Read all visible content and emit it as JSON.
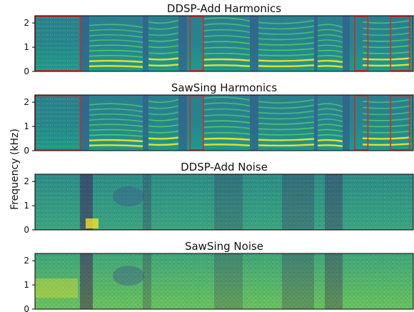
{
  "figure": {
    "ylabel": "Frequency (kHz)",
    "yticks": [
      "0",
      "1",
      "2"
    ]
  },
  "colors": {
    "colormap": [
      "#440154",
      "#3b528b",
      "#21918c",
      "#5ec962",
      "#fde725"
    ],
    "highlight_box": "#d62728"
  },
  "chart_data": [
    {
      "type": "heatmap",
      "title": "DDSP-Add Harmonics",
      "ylabel": "Frequency (kHz)",
      "ylim": [
        0,
        2.3
      ],
      "yticks": [
        0,
        1,
        2
      ],
      "content": "harmonics",
      "highlight_regions_fraction": [
        [
          0.0,
          0.12
        ],
        [
          0.41,
          0.445
        ],
        [
          0.845,
          0.88
        ],
        [
          0.94,
          0.99
        ]
      ]
    },
    {
      "type": "heatmap",
      "title": "SawSing Harmonics",
      "ylabel": "Frequency (kHz)",
      "ylim": [
        0,
        2.3
      ],
      "yticks": [
        0,
        1,
        2
      ],
      "content": "harmonics",
      "highlight_regions_fraction": [
        [
          0.0,
          0.12
        ],
        [
          0.41,
          0.445
        ],
        [
          0.845,
          0.88
        ],
        [
          0.94,
          0.99
        ]
      ]
    },
    {
      "type": "heatmap",
      "title": "DDSP-Add Noise",
      "ylabel": "Frequency (kHz)",
      "ylim": [
        0,
        2.3
      ],
      "yticks": [
        0,
        1,
        2
      ],
      "content": "noise"
    },
    {
      "type": "heatmap",
      "title": "SawSing Noise",
      "ylabel": "Frequency (kHz)",
      "ylim": [
        0,
        2.3
      ],
      "yticks": [
        0,
        1,
        2
      ],
      "content": "noise"
    }
  ]
}
